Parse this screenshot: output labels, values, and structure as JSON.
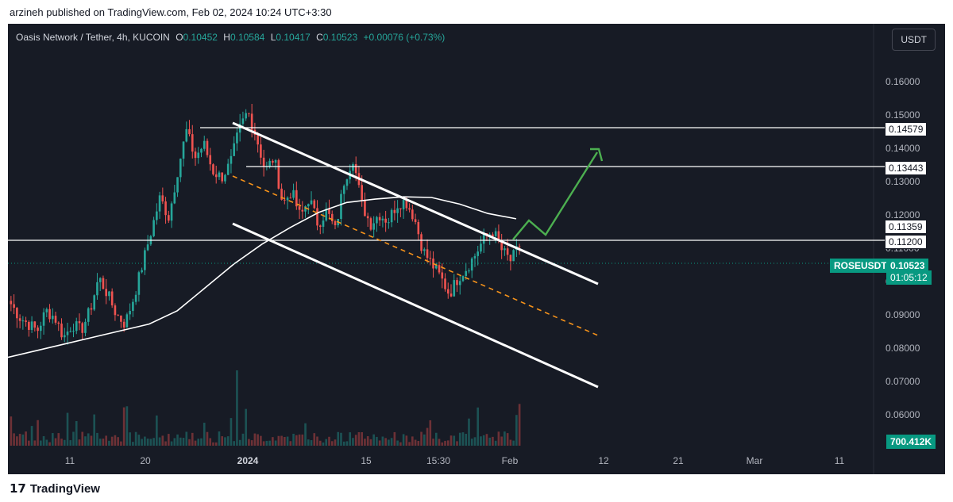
{
  "header": {
    "published": "arzineh published on TradingView.com, Feb 02, 2024 10:24 UTC+3:30"
  },
  "legend": {
    "symbol": "Oasis Network / Tether, 4h, KUCOIN",
    "o_label": "O",
    "o": "0.10452",
    "h_label": "H",
    "h": "0.10584",
    "l_label": "L",
    "l": "0.10417",
    "c_label": "C",
    "c": "0.10523",
    "change": "+0.00076 (+0.73%)"
  },
  "currency_button": "USDT",
  "price_axis": [
    "0.16000",
    "0.15000",
    "0.14000",
    "0.13000",
    "0.12000",
    "0.11000",
    "0.10000",
    "0.09000",
    "0.08000",
    "0.07000",
    "0.06000"
  ],
  "levels": [
    "0.14579",
    "0.13443",
    "0.11359",
    "0.11200"
  ],
  "current": {
    "symbol": "ROSEUSDT",
    "price": "0.10523",
    "countdown": "01:05:12"
  },
  "volume_label": "700.412K",
  "time_axis": [
    "11",
    "20",
    "2024",
    "15",
    "15:30",
    "Feb",
    "12",
    "21",
    "Mar",
    "11"
  ],
  "footer": {
    "brand": "TradingView"
  },
  "colors": {
    "up": "#26a69a",
    "down": "#ef5350",
    "bg": "#171b25",
    "ma": "#ffffff",
    "arrow": "#4caf50",
    "midline": "#f7931a"
  },
  "chart_data": {
    "type": "candlestick",
    "title": "Oasis Network / Tether, 4h, KUCOIN",
    "ylim": [
      0.055,
      0.165
    ],
    "close_path": [
      0.088,
      0.084,
      0.082,
      0.08,
      0.086,
      0.084,
      0.078,
      0.082,
      0.08,
      0.086,
      0.096,
      0.091,
      0.085,
      0.082,
      0.09,
      0.1,
      0.11,
      0.12,
      0.114,
      0.128,
      0.14,
      0.132,
      0.136,
      0.128,
      0.126,
      0.13,
      0.14,
      0.146,
      0.138,
      0.128,
      0.132,
      0.118,
      0.122,
      0.114,
      0.12,
      0.112,
      0.116,
      0.11,
      0.125,
      0.132,
      0.118,
      0.112,
      0.115,
      0.113,
      0.118,
      0.119,
      0.114,
      0.104,
      0.1,
      0.096,
      0.091,
      0.096,
      0.099,
      0.103,
      0.108,
      0.11,
      0.104,
      0.101,
      0.1052
    ],
    "moving_average_path": [
      0.072,
      0.074,
      0.076,
      0.078,
      0.08,
      0.082,
      0.086,
      0.093,
      0.1,
      0.106,
      0.111,
      0.1155,
      0.1185,
      0.1195,
      0.1202,
      0.12,
      0.118,
      0.1152,
      0.1136
    ],
    "horizontal_levels": [
      0.14579,
      0.13443,
      0.11359,
      0.112
    ],
    "current_price": 0.10523,
    "volume_last": "700.412K"
  }
}
